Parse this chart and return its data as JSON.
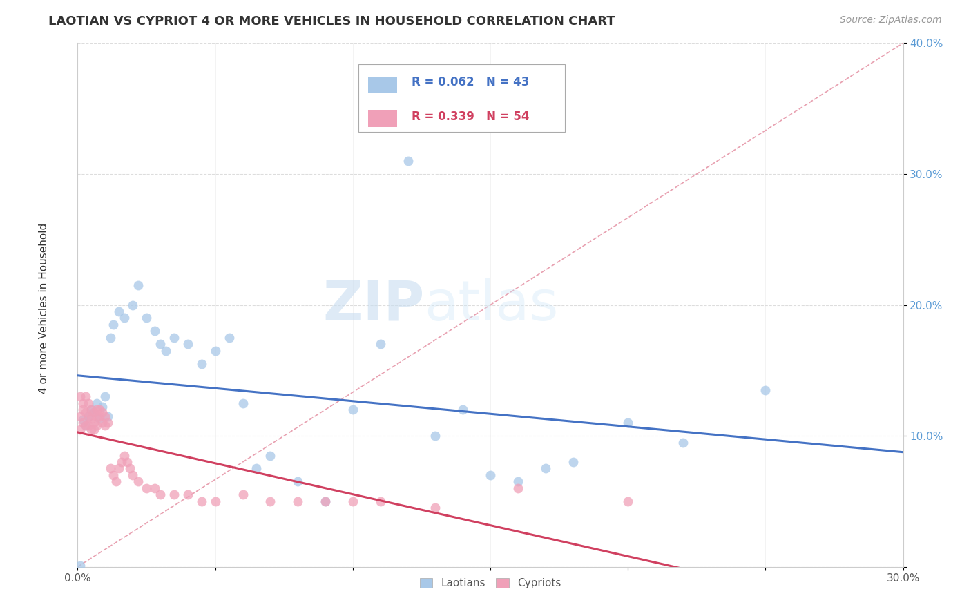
{
  "title": "LAOTIAN VS CYPRIOT 4 OR MORE VEHICLES IN HOUSEHOLD CORRELATION CHART",
  "source": "Source: ZipAtlas.com",
  "ylabel": "4 or more Vehicles in Household",
  "xlim": [
    0.0,
    0.3
  ],
  "ylim": [
    0.0,
    0.4
  ],
  "xticks": [
    0.0,
    0.05,
    0.1,
    0.15,
    0.2,
    0.25,
    0.3
  ],
  "xticklabels": [
    "0.0%",
    "",
    "",
    "",
    "",
    "",
    "30.0%"
  ],
  "yticks": [
    0.0,
    0.1,
    0.2,
    0.3,
    0.4
  ],
  "yticklabels": [
    "",
    "10.0%",
    "20.0%",
    "30.0%",
    "40.0%"
  ],
  "laotian_color": "#a8c8e8",
  "cypriot_color": "#f0a0b8",
  "laotian_line_color": "#4472c4",
  "cypriot_line_color": "#d04060",
  "diagonal_color": "#e8a0b0",
  "watermark_color": "#ddeeff",
  "R_laotian": 0.062,
  "N_laotian": 43,
  "R_cypriot": 0.339,
  "N_cypriot": 54,
  "laotian_x": [
    0.001,
    0.002,
    0.003,
    0.004,
    0.005,
    0.006,
    0.007,
    0.008,
    0.009,
    0.01,
    0.011,
    0.012,
    0.013,
    0.015,
    0.017,
    0.02,
    0.022,
    0.025,
    0.028,
    0.03,
    0.032,
    0.035,
    0.04,
    0.045,
    0.05,
    0.055,
    0.06,
    0.065,
    0.07,
    0.08,
    0.09,
    0.1,
    0.11,
    0.12,
    0.13,
    0.14,
    0.15,
    0.16,
    0.17,
    0.18,
    0.2,
    0.22,
    0.25
  ],
  "laotian_y": [
    0.001,
    0.112,
    0.108,
    0.115,
    0.12,
    0.118,
    0.125,
    0.113,
    0.122,
    0.13,
    0.115,
    0.175,
    0.185,
    0.195,
    0.19,
    0.2,
    0.215,
    0.19,
    0.18,
    0.17,
    0.165,
    0.175,
    0.17,
    0.155,
    0.165,
    0.175,
    0.125,
    0.075,
    0.085,
    0.065,
    0.05,
    0.12,
    0.17,
    0.31,
    0.1,
    0.12,
    0.07,
    0.065,
    0.075,
    0.08,
    0.11,
    0.095,
    0.135
  ],
  "cypriot_x": [
    0.001,
    0.001,
    0.001,
    0.002,
    0.002,
    0.002,
    0.003,
    0.003,
    0.003,
    0.004,
    0.004,
    0.004,
    0.005,
    0.005,
    0.005,
    0.006,
    0.006,
    0.006,
    0.007,
    0.007,
    0.007,
    0.008,
    0.008,
    0.009,
    0.009,
    0.01,
    0.01,
    0.011,
    0.012,
    0.013,
    0.014,
    0.015,
    0.016,
    0.017,
    0.018,
    0.019,
    0.02,
    0.022,
    0.025,
    0.028,
    0.03,
    0.035,
    0.04,
    0.045,
    0.05,
    0.06,
    0.07,
    0.08,
    0.09,
    0.1,
    0.11,
    0.13,
    0.16,
    0.2
  ],
  "cypriot_y": [
    0.13,
    0.115,
    0.105,
    0.12,
    0.125,
    0.11,
    0.13,
    0.118,
    0.108,
    0.125,
    0.115,
    0.108,
    0.12,
    0.113,
    0.105,
    0.118,
    0.11,
    0.105,
    0.12,
    0.115,
    0.108,
    0.12,
    0.115,
    0.118,
    0.11,
    0.115,
    0.108,
    0.11,
    0.075,
    0.07,
    0.065,
    0.075,
    0.08,
    0.085,
    0.08,
    0.075,
    0.07,
    0.065,
    0.06,
    0.06,
    0.055,
    0.055,
    0.055,
    0.05,
    0.05,
    0.055,
    0.05,
    0.05,
    0.05,
    0.05,
    0.05,
    0.045,
    0.06,
    0.05
  ]
}
